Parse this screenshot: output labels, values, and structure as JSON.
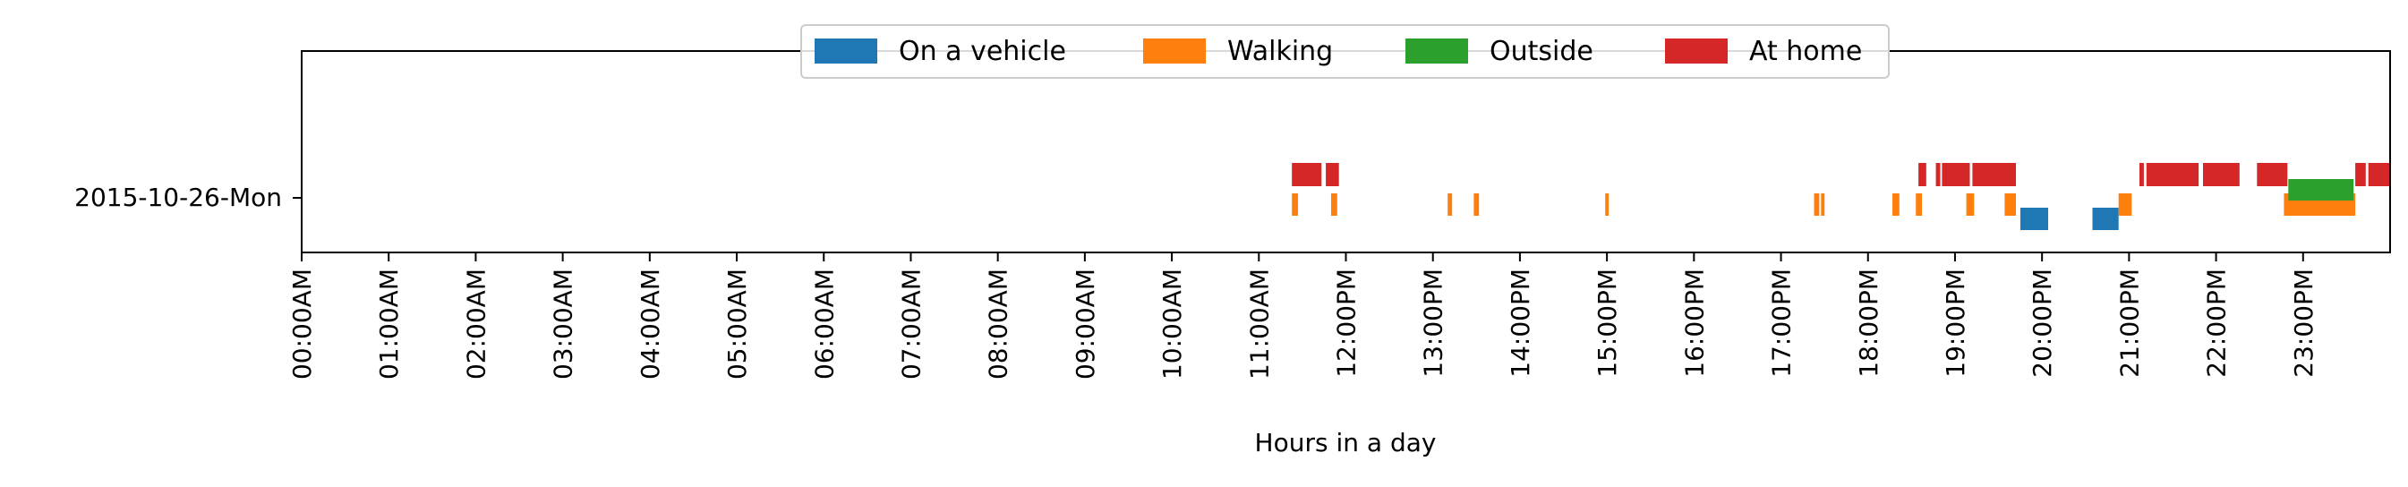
{
  "chart_data": {
    "type": "timeline",
    "xlabel": "Hours in a day",
    "ylabel": "",
    "title": "",
    "xlim": [
      0,
      24
    ],
    "x_ticks": [
      "00:00AM",
      "01:00AM",
      "02:00AM",
      "03:00AM",
      "04:00AM",
      "05:00AM",
      "06:00AM",
      "07:00AM",
      "08:00AM",
      "09:00AM",
      "10:00AM",
      "11:00AM",
      "12:00PM",
      "13:00PM",
      "14:00PM",
      "15:00PM",
      "16:00PM",
      "17:00PM",
      "18:00PM",
      "19:00PM",
      "20:00PM",
      "21:00PM",
      "22:00PM",
      "23:00PM"
    ],
    "categories": [
      "2015-10-26-Mon"
    ],
    "grid": false,
    "legend_position": "top-center",
    "series": [
      {
        "name": "On a vehicle",
        "color": "#1f77b4",
        "row": "2015-10-26-Mon",
        "band": "bottom",
        "intervals": [
          [
            19.75,
            20.07
          ],
          [
            20.58,
            20.88
          ]
        ]
      },
      {
        "name": "Walking",
        "color": "#ff7f0e",
        "row": "2015-10-26-Mon",
        "band": "middle",
        "intervals": [
          [
            11.38,
            11.45
          ],
          [
            11.83,
            11.9
          ],
          [
            13.17,
            13.22
          ],
          [
            13.47,
            13.53
          ],
          [
            14.98,
            15.02
          ],
          [
            17.38,
            17.44
          ],
          [
            17.46,
            17.5
          ],
          [
            18.28,
            18.36
          ],
          [
            18.55,
            18.62
          ],
          [
            19.13,
            19.22
          ],
          [
            19.57,
            19.7
          ],
          [
            20.88,
            21.03
          ],
          [
            22.78,
            23.6
          ]
        ]
      },
      {
        "name": "Outside",
        "color": "#2ca02c",
        "row": "2015-10-26-Mon",
        "band": "middle-upper",
        "intervals": [
          [
            22.83,
            23.58
          ]
        ]
      },
      {
        "name": "At home",
        "color": "#d62728",
        "row": "2015-10-26-Mon",
        "band": "top",
        "intervals": [
          [
            11.38,
            11.72
          ],
          [
            11.77,
            11.92
          ],
          [
            18.58,
            18.67
          ],
          [
            18.78,
            18.83
          ],
          [
            18.85,
            19.17
          ],
          [
            19.2,
            19.7
          ],
          [
            21.12,
            21.17
          ],
          [
            21.2,
            21.8
          ],
          [
            21.85,
            22.27
          ],
          [
            22.47,
            22.82
          ],
          [
            23.6,
            23.72
          ],
          [
            23.75,
            24.0
          ]
        ]
      }
    ]
  }
}
